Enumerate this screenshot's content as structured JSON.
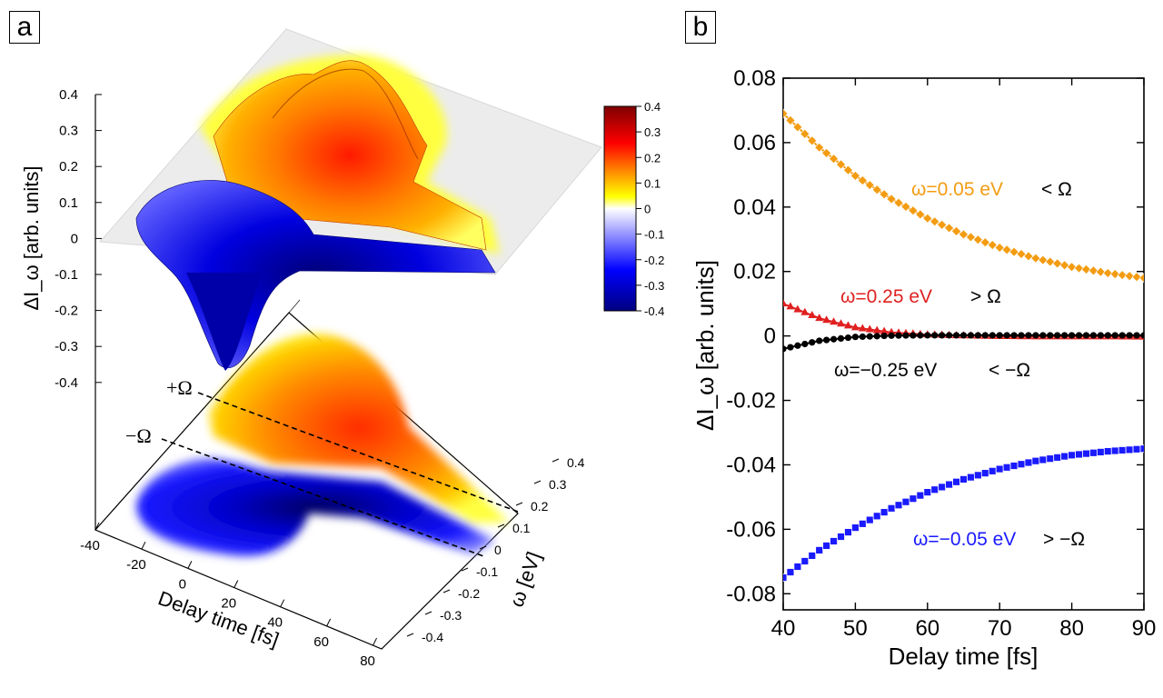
{
  "panels": {
    "a": "a",
    "b": "b"
  },
  "chart_data": [
    {
      "panel": "a",
      "type": "surface3d",
      "zlabel": "ΔI_ω [arb. units]",
      "z_ticks": [
        "0.4",
        "0.3",
        "0.2",
        "0.1",
        "0",
        "-0.1",
        "-0.2",
        "-0.3",
        "-0.4"
      ],
      "xlabel": "Delay time [fs]",
      "x_ticks": [
        "-40",
        "-20",
        "0",
        "20",
        "40",
        "60",
        "80"
      ],
      "ylabel": "ω [eV]",
      "y_ticks": [
        "-0.4",
        "-0.3",
        "-0.2",
        "-0.1",
        "0",
        "0.1",
        "0.2",
        "0.3",
        "0.4"
      ],
      "colorbar": {
        "ticks": [
          "0.4",
          "0.3",
          "0.2",
          "0.1",
          "0",
          "-0.1",
          "-0.2",
          "-0.3",
          "-0.4"
        ],
        "range": [
          -0.4,
          0.4
        ],
        "colors": [
          "#00007f",
          "#0000ff",
          "#ffffff",
          "#ffff00",
          "#ff8c00",
          "#ff0000",
          "#7f0000"
        ]
      },
      "annotations": [
        "+Ω",
        "−Ω"
      ],
      "colors": {
        "positive": "#ff2000",
        "negative": "#0000ff",
        "mid": "#ffd700"
      }
    },
    {
      "panel": "b",
      "type": "line",
      "xlabel": "Delay time [fs]",
      "ylabel": "ΔI_ω [arb. units]",
      "xlim": [
        40,
        90
      ],
      "ylim": [
        -0.085,
        0.08
      ],
      "x_ticks": [
        40,
        50,
        60,
        70,
        80,
        90
      ],
      "y_ticks": [
        -0.08,
        -0.06,
        -0.04,
        -0.02,
        0,
        0.02,
        0.04,
        0.06,
        0.08
      ],
      "x_tick_labels": [
        "40",
        "50",
        "60",
        "70",
        "80",
        "90"
      ],
      "y_tick_labels": [
        "-0.08",
        "-0.06",
        "-0.04",
        "-0.02",
        "0",
        "0.02",
        "0.04",
        "0.06",
        "0.08"
      ],
      "series": [
        {
          "name": "ω=0.05 eV",
          "relation": "< Ω",
          "color": "#f39c12",
          "marker": "diamond",
          "x": [
            40,
            45,
            50,
            55,
            60,
            65,
            70,
            75,
            80,
            85,
            90
          ],
          "values": [
            0.069,
            0.0585,
            0.0497,
            0.0425,
            0.0365,
            0.0315,
            0.0274,
            0.0241,
            0.0214,
            0.0195,
            0.018
          ]
        },
        {
          "name": "ω=0.25 eV",
          "relation": "> Ω",
          "color": "#e02020",
          "marker": "triangle",
          "x": [
            40,
            45,
            50,
            55,
            60,
            65,
            70,
            75,
            80,
            85,
            90
          ],
          "values": [
            0.01,
            0.0055,
            0.0026,
            0.0011,
            0.0004,
            0.0001,
            -0.0001,
            -0.0002,
            -0.0002,
            -0.0002,
            -0.0003
          ]
        },
        {
          "name": "ω=−0.25 eV",
          "relation": "< −Ω",
          "color": "#000000",
          "marker": "circle",
          "x": [
            40,
            45,
            50,
            55,
            60,
            65,
            70,
            75,
            80,
            85,
            90
          ],
          "values": [
            -0.004,
            -0.0015,
            -0.0003,
            0.0001,
            0.0002,
            0.0002,
            0.0002,
            0.0002,
            0.0002,
            0.0002,
            0.0002
          ]
        },
        {
          "name": "ω=−0.05 eV",
          "relation": "> −Ω",
          "color": "#1a1aff",
          "marker": "square",
          "x": [
            40,
            45,
            50,
            55,
            60,
            65,
            70,
            75,
            80,
            85,
            90
          ],
          "values": [
            -0.075,
            -0.0665,
            -0.0595,
            -0.0535,
            -0.0485,
            -0.0445,
            -0.0413,
            -0.0388,
            -0.037,
            -0.0358,
            -0.035
          ]
        }
      ]
    }
  ]
}
